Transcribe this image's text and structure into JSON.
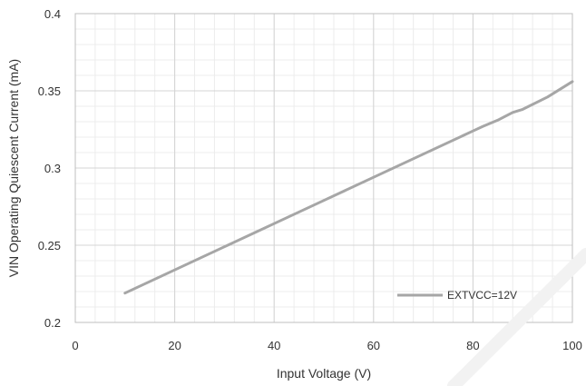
{
  "chart_data": {
    "type": "line",
    "title": "",
    "xlabel": "Input Voltage (V)",
    "ylabel": "VIN Operating Quiescent Current (mA)",
    "xlim": [
      0,
      100
    ],
    "ylim": [
      0.2,
      0.4
    ],
    "xticks": [
      0,
      20,
      40,
      60,
      80,
      100
    ],
    "yticks": [
      0.2,
      0.25,
      0.3,
      0.35,
      0.4
    ],
    "xtick_labels": [
      "0",
      "20",
      "40",
      "60",
      "80",
      "100"
    ],
    "ytick_labels": [
      "0.2",
      "0.25",
      "0.3",
      "0.35",
      "0.4"
    ],
    "grid": true,
    "legend_position": "bottom-right",
    "series": [
      {
        "name": "EXTVCC=12V",
        "color": "#a6a6a6",
        "x": [
          10,
          20,
          30,
          40,
          50,
          60,
          70,
          80,
          82,
          85,
          88,
          90,
          95,
          100
        ],
        "y": [
          0.219,
          0.234,
          0.249,
          0.264,
          0.279,
          0.294,
          0.309,
          0.324,
          0.327,
          0.331,
          0.336,
          0.338,
          0.346,
          0.356
        ]
      }
    ]
  }
}
